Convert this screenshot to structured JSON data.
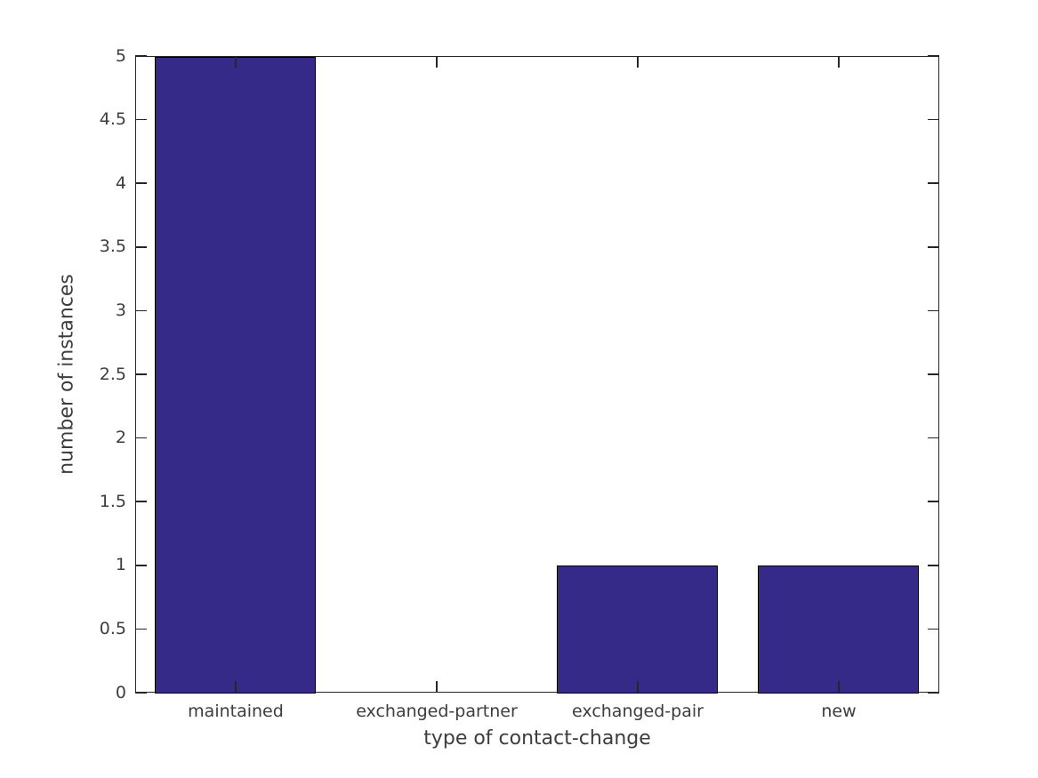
{
  "figure": {
    "background_color": "#ffffff"
  },
  "chart_data": {
    "type": "bar",
    "title": "",
    "categories": [
      "maintained",
      "exchanged-partner",
      "exchanged-pair",
      "new"
    ],
    "values": [
      5,
      0,
      1,
      1
    ],
    "xlabel": "type of contact-change",
    "ylabel": "number of instances",
    "ylim": [
      0,
      5
    ],
    "yticks": [
      0,
      0.5,
      1,
      1.5,
      2,
      2.5,
      3,
      3.5,
      4,
      4.5,
      5
    ],
    "ytick_labels": [
      "0",
      "0.5",
      "1",
      "1.5",
      "2",
      "2.5",
      "3",
      "3.5",
      "4",
      "4.5",
      "5"
    ],
    "bar_color": "#352A87",
    "bar_edge_color": "#000000",
    "axis_color": "#262626",
    "text_color": "#3d3d3d",
    "bar_width_fraction": 0.8,
    "grid": false,
    "legend_position": "none",
    "box": true,
    "tick_direction": "in"
  }
}
